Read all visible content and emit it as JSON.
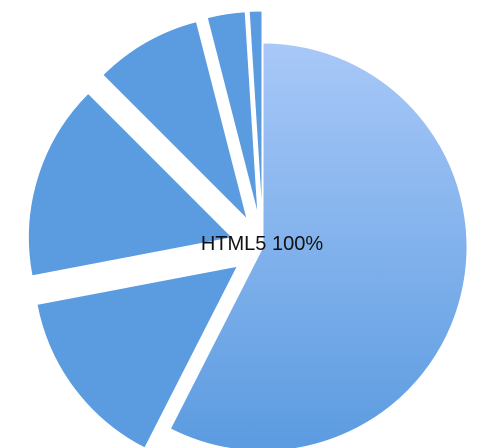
{
  "chart_data": {
    "type": "pie",
    "title": "",
    "center_label": "HTML5 100%",
    "slices": [
      {
        "value": 57.5,
        "exploded": false,
        "color": "#5b9be0",
        "color_light": "#a8c8f8"
      },
      {
        "value": 14.5,
        "exploded": true,
        "color": "#5b9be0"
      },
      {
        "value": 15.5,
        "exploded": true,
        "color": "#5b9be0"
      },
      {
        "value": 8.5,
        "exploded": true,
        "color": "#5b9be0"
      },
      {
        "value": 3.0,
        "exploded": true,
        "color": "#5b9be0"
      },
      {
        "value": 1.0,
        "exploded": true,
        "color": "#5b9be0"
      }
    ],
    "legend": "none"
  }
}
